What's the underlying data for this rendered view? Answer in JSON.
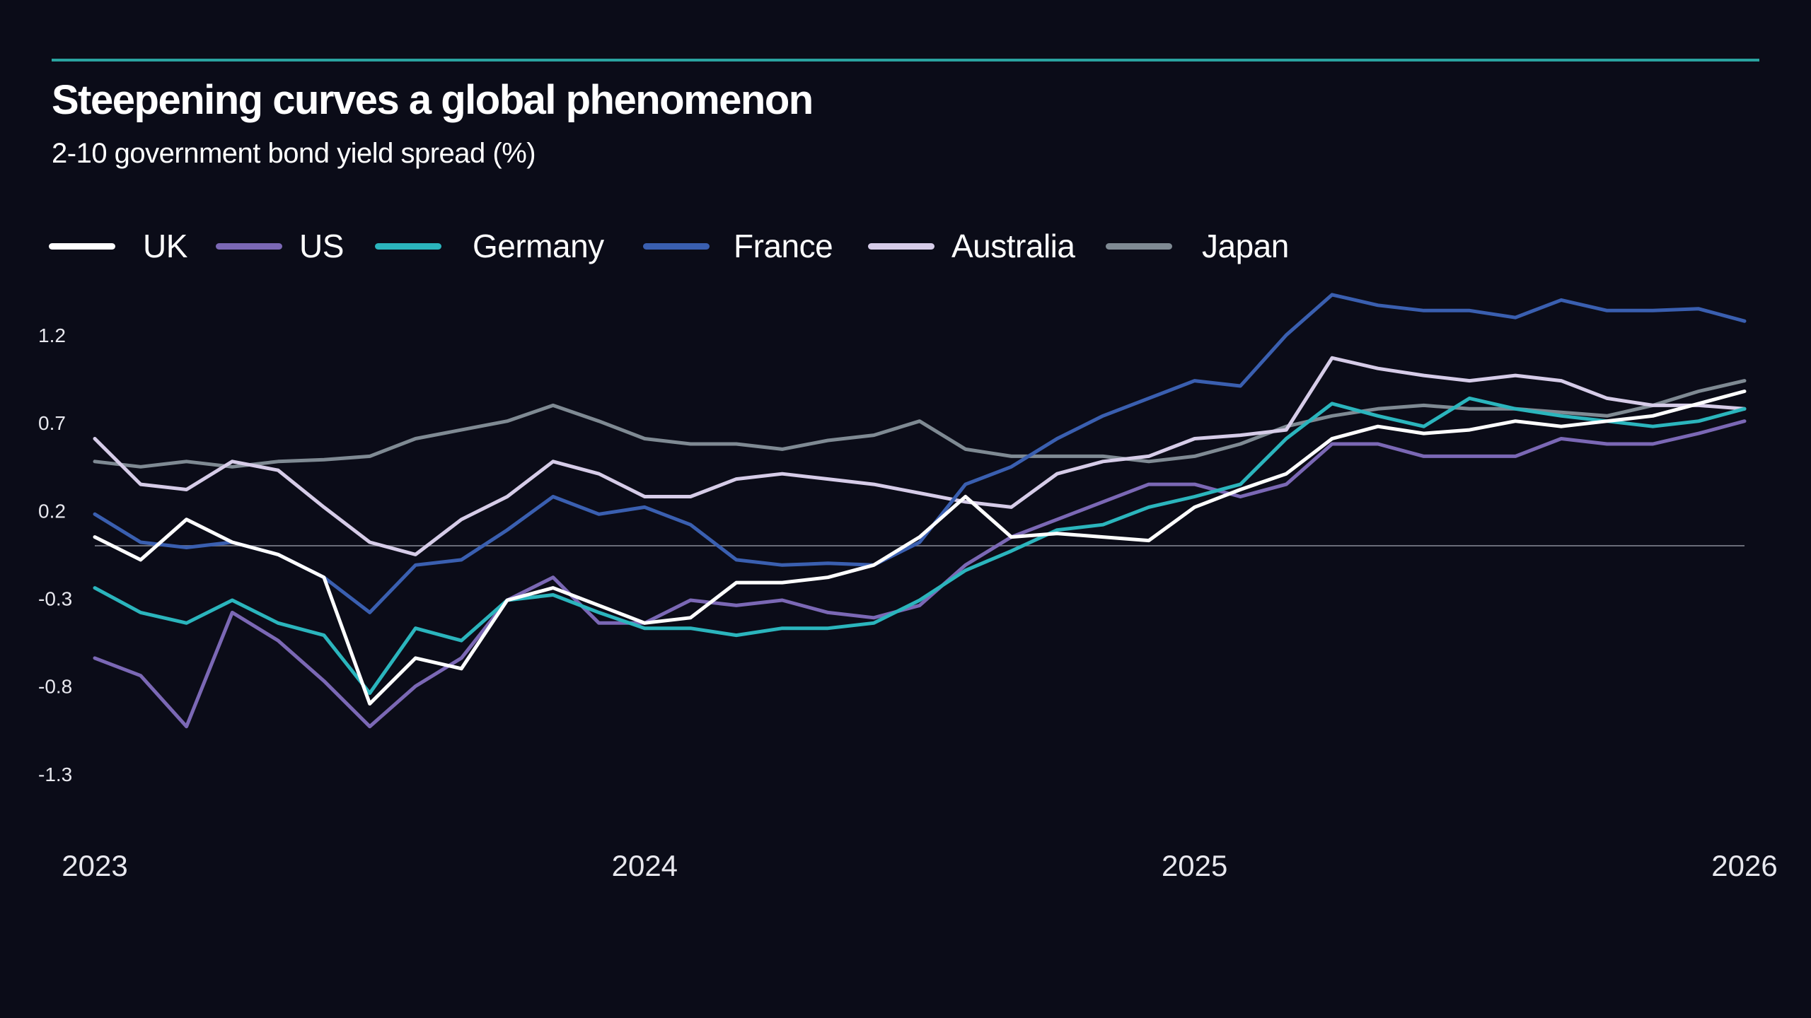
{
  "header": {
    "title": "Steepening curves a global phenomenon",
    "subtitle": "2-10 government bond yield spread (%)",
    "accent_color": "#2aa3a0"
  },
  "background_color": "#0b0c18",
  "chart_data": {
    "type": "line",
    "title": "Steepening curves a global phenomenon",
    "subtitle": "2-10 government bond yield spread (%)",
    "xlabel": "",
    "ylabel": "",
    "x_ticks": [
      "2023",
      "2024",
      "2025",
      "2026"
    ],
    "y_ticks": [
      "1.2",
      "0.7",
      "0.2",
      "-0.3",
      "-0.8",
      "-1.3"
    ],
    "y_tick_values": [
      1.2,
      0.7,
      0.2,
      -0.3,
      -0.8,
      -1.3
    ],
    "ylim": [
      -1.55,
      1.5
    ],
    "xlim": [
      "2023-01",
      "2026-01"
    ],
    "zero_line": true,
    "grid": false,
    "legend_position": "top-left",
    "x": [
      "2023-01",
      "2023-02",
      "2023-03",
      "2023-04",
      "2023-05",
      "2023-06",
      "2023-07",
      "2023-08",
      "2023-09",
      "2023-10",
      "2023-11",
      "2023-12",
      "2024-01",
      "2024-02",
      "2024-03",
      "2024-04",
      "2024-05",
      "2024-06",
      "2024-07",
      "2024-08",
      "2024-09",
      "2024-10",
      "2024-11",
      "2024-12",
      "2025-01",
      "2025-02",
      "2025-03",
      "2025-04",
      "2025-05",
      "2025-06",
      "2025-07",
      "2025-08",
      "2025-09",
      "2025-10",
      "2025-11",
      "2025-12",
      "2026-01"
    ],
    "series": [
      {
        "name": "Japan",
        "color": "#7f8a93",
        "values": [
          0.48,
          0.45,
          0.48,
          0.45,
          0.48,
          0.49,
          0.51,
          0.61,
          0.66,
          0.71,
          0.8,
          0.71,
          0.61,
          0.58,
          0.58,
          0.55,
          0.6,
          0.63,
          0.71,
          0.55,
          0.51,
          0.51,
          0.51,
          0.48,
          0.51,
          0.58,
          0.68,
          0.74,
          0.78,
          0.8,
          0.78,
          0.78,
          0.76,
          0.74,
          0.8,
          0.88,
          0.94
        ]
      },
      {
        "name": "Australia",
        "color": "#d6cce8",
        "values": [
          0.61,
          0.35,
          0.32,
          0.48,
          0.43,
          0.22,
          0.02,
          -0.05,
          0.15,
          0.28,
          0.48,
          0.41,
          0.28,
          0.28,
          0.38,
          0.41,
          0.38,
          0.35,
          0.3,
          0.25,
          0.22,
          0.41,
          0.48,
          0.51,
          0.61,
          0.63,
          0.66,
          1.07,
          1.01,
          0.97,
          0.94,
          0.97,
          0.94,
          0.84,
          0.8,
          0.8,
          0.78
        ]
      },
      {
        "name": "France",
        "color": "#3a5fb0",
        "values": [
          0.18,
          0.02,
          -0.01,
          0.02,
          -0.05,
          -0.18,
          -0.38,
          -0.11,
          -0.08,
          0.09,
          0.28,
          0.18,
          0.22,
          0.12,
          -0.08,
          -0.11,
          -0.1,
          -0.11,
          0.02,
          0.35,
          0.45,
          0.61,
          0.74,
          0.84,
          0.94,
          0.91,
          1.2,
          1.43,
          1.37,
          1.34,
          1.34,
          1.3,
          1.4,
          1.34,
          1.34,
          1.35,
          1.28
        ]
      },
      {
        "name": "US",
        "color": "#7b68b5",
        "values": [
          -0.64,
          -0.74,
          -1.03,
          -0.38,
          -0.54,
          -0.77,
          -1.03,
          -0.8,
          -0.64,
          -0.31,
          -0.18,
          -0.44,
          -0.44,
          -0.31,
          -0.34,
          -0.31,
          -0.38,
          -0.41,
          -0.34,
          -0.11,
          0.05,
          0.15,
          0.25,
          0.35,
          0.35,
          0.28,
          0.35,
          0.58,
          0.58,
          0.51,
          0.51,
          0.51,
          0.61,
          0.58,
          0.58,
          0.64,
          0.71
        ]
      },
      {
        "name": "Germany",
        "color": "#2bb5bd",
        "values": [
          -0.24,
          -0.38,
          -0.44,
          -0.31,
          -0.44,
          -0.51,
          -0.84,
          -0.47,
          -0.54,
          -0.31,
          -0.28,
          -0.38,
          -0.47,
          -0.47,
          -0.51,
          -0.47,
          -0.47,
          -0.44,
          -0.31,
          -0.14,
          -0.03,
          0.09,
          0.12,
          0.22,
          0.28,
          0.35,
          0.61,
          0.81,
          0.74,
          0.68,
          0.84,
          0.78,
          0.74,
          0.71,
          0.68,
          0.71,
          0.78
        ]
      },
      {
        "name": "UK",
        "color": "#ffffff",
        "values": [
          0.05,
          -0.08,
          0.15,
          0.02,
          -0.05,
          -0.18,
          -0.9,
          -0.64,
          -0.7,
          -0.31,
          -0.24,
          -0.34,
          -0.44,
          -0.41,
          -0.21,
          -0.21,
          -0.18,
          -0.11,
          0.05,
          0.28,
          0.05,
          0.07,
          0.05,
          0.03,
          0.22,
          0.32,
          0.41,
          0.61,
          0.68,
          0.64,
          0.66,
          0.71,
          0.68,
          0.71,
          0.74,
          0.81,
          0.88
        ]
      }
    ]
  },
  "legend": [
    {
      "label": "UK",
      "color": "#ffffff"
    },
    {
      "label": "US",
      "color": "#7b68b5"
    },
    {
      "label": "Germany",
      "color": "#2bb5bd"
    },
    {
      "label": "France",
      "color": "#3a5fb0"
    },
    {
      "label": "Australia",
      "color": "#d6cce8"
    },
    {
      "label": "Japan",
      "color": "#7f8a93"
    }
  ]
}
